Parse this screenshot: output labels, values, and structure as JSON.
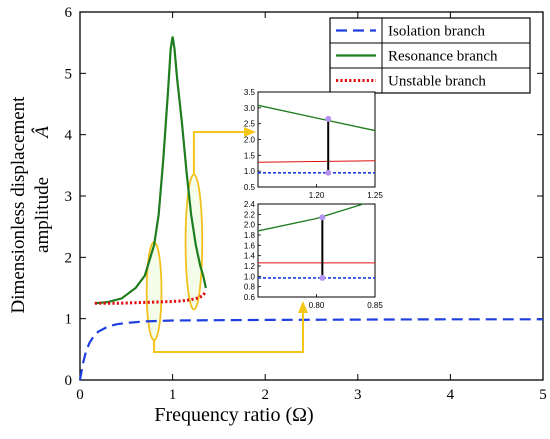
{
  "chart_data": [
    {
      "type": "line",
      "xlabel": "Frequency ratio (Ω)",
      "ylabel_line1": "Dimensionless displacement",
      "ylabel_line2": "amplitude",
      "ylabel_symbol": "Â",
      "xlim": [
        0,
        5
      ],
      "ylim": [
        0,
        6
      ],
      "xticks": [
        0,
        1,
        2,
        3,
        4,
        5
      ],
      "yticks": [
        0,
        1,
        2,
        3,
        4,
        5,
        6
      ],
      "grid": false,
      "legend_position": "top-right",
      "series": [
        {
          "name": "Isolation branch",
          "style": "dashed",
          "color": "#1f3fe0",
          "x": [
            0.0,
            0.03,
            0.06,
            0.1,
            0.15,
            0.2,
            0.3,
            0.4,
            0.5,
            0.7,
            1.0,
            1.5,
            2.0,
            3.0,
            4.0,
            5.0
          ],
          "y": [
            0.0,
            0.26,
            0.44,
            0.6,
            0.72,
            0.79,
            0.87,
            0.91,
            0.93,
            0.955,
            0.97,
            0.975,
            0.98,
            0.985,
            0.99,
            0.99
          ]
        },
        {
          "name": "Resonance branch",
          "style": "solid",
          "color": "#1e7d1e",
          "x": [
            0.16,
            0.3,
            0.45,
            0.6,
            0.7,
            0.8,
            0.85,
            0.9,
            0.95,
            0.98,
            1.0,
            1.02,
            1.05,
            1.1,
            1.15,
            1.2,
            1.25,
            1.3,
            1.33,
            1.36
          ],
          "y": [
            1.25,
            1.27,
            1.33,
            1.5,
            1.7,
            2.2,
            2.7,
            3.6,
            4.7,
            5.4,
            5.6,
            5.4,
            4.9,
            4.2,
            3.4,
            2.7,
            2.2,
            1.85,
            1.7,
            1.5
          ]
        },
        {
          "name": "Unstable branch",
          "style": "dotted",
          "color": "#e01010",
          "x": [
            0.16,
            0.4,
            0.6,
            0.8,
            1.0,
            1.1,
            1.2,
            1.28,
            1.33,
            1.36
          ],
          "y": [
            1.25,
            1.25,
            1.26,
            1.27,
            1.28,
            1.29,
            1.31,
            1.34,
            1.38,
            1.45
          ]
        }
      ],
      "ellipses": [
        {
          "cx": 0.8,
          "cy": 1.45,
          "rx": 0.08,
          "ry": 0.8
        },
        {
          "cx": 1.23,
          "cy": 2.25,
          "rx": 0.09,
          "ry": 1.1
        }
      ]
    },
    {
      "type": "line",
      "role": "inset-top",
      "xlim": [
        1.15,
        1.25
      ],
      "ylim": [
        0.5,
        3.5
      ],
      "xticks": [
        1.2,
        1.25
      ],
      "xtick_labels": [
        "1.20",
        "1.25"
      ],
      "yticks": [
        0.5,
        1.0,
        1.5,
        2.0,
        2.5,
        3.0,
        3.5
      ],
      "ytick_labels": [
        "0.5",
        "1.0",
        "1.5",
        "2.0",
        "2.5",
        "3.0",
        "3.5"
      ],
      "series": [
        {
          "name": "Resonance branch",
          "x": [
            1.15,
            1.2,
            1.25
          ],
          "y": [
            3.08,
            2.68,
            2.28
          ]
        },
        {
          "name": "Unstable branch",
          "x": [
            1.15,
            1.25
          ],
          "y": [
            1.28,
            1.33
          ]
        },
        {
          "name": "Isolation branch",
          "x": [
            1.15,
            1.25
          ],
          "y": [
            0.95,
            0.95
          ]
        }
      ],
      "marker_x": 1.21,
      "marker_points": [
        2.65,
        0.95
      ]
    },
    {
      "type": "line",
      "role": "inset-bottom",
      "xlim": [
        0.75,
        0.85
      ],
      "ylim": [
        0.6,
        2.4
      ],
      "xticks": [
        0.8,
        0.85
      ],
      "xtick_labels": [
        "0.80",
        "0.85"
      ],
      "yticks": [
        0.6,
        0.8,
        1.0,
        1.2,
        1.4,
        1.6,
        1.8,
        2.0,
        2.2,
        2.4
      ],
      "ytick_labels": [
        "0.6",
        "0.8",
        "1.0",
        "1.2",
        "1.4",
        "1.6",
        "1.8",
        "2.0",
        "2.2",
        "2.4"
      ],
      "series": [
        {
          "name": "Resonance branch",
          "x": [
            0.75,
            0.8,
            0.84
          ],
          "y": [
            1.88,
            2.12,
            2.4
          ]
        },
        {
          "name": "Unstable branch",
          "x": [
            0.75,
            0.85
          ],
          "y": [
            1.26,
            1.26
          ]
        },
        {
          "name": "Isolation branch",
          "x": [
            0.75,
            0.85
          ],
          "y": [
            0.97,
            0.97
          ]
        }
      ],
      "marker_x": 0.805,
      "marker_points": [
        2.14,
        0.97
      ]
    }
  ]
}
